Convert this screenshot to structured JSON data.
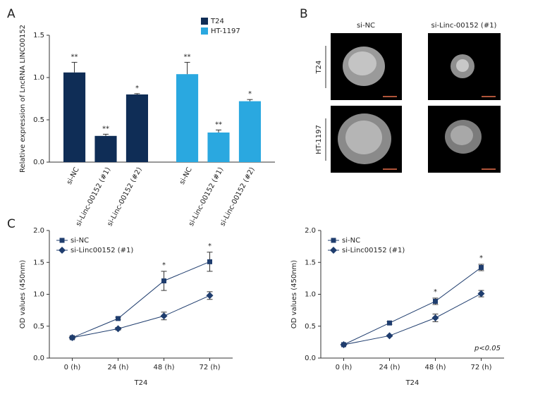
{
  "panel_labels": [
    "A",
    "B",
    "C"
  ],
  "panel_b": {
    "columns": [
      "si-NC",
      "si-Linc-00152 (#1)"
    ],
    "rows": [
      "T24",
      "HT-1197"
    ]
  },
  "chart_data": [
    {
      "type": "bar",
      "y_label": "Relative expression of LncRNA LINC00152",
      "categories": [
        "si-NC",
        "si-Linc-00152 (#1)",
        "si-Linc-00152 (#2)"
      ],
      "series": [
        {
          "name": "T24",
          "color": "#0f2d56",
          "values": [
            1.06,
            0.31,
            0.8
          ],
          "errors": [
            0.12,
            0.02,
            0.01
          ],
          "significance": [
            "**",
            "**",
            "*"
          ]
        },
        {
          "name": "HT-1197",
          "color": "#2aa8e0",
          "values": [
            1.04,
            0.35,
            0.72
          ],
          "errors": [
            0.14,
            0.03,
            0.02
          ],
          "significance": [
            "**",
            "**",
            "*"
          ]
        }
      ],
      "ylim": [
        0,
        1.5
      ],
      "yticks": [
        {
          "value": 0,
          "label": "0.0"
        },
        0.5,
        {
          "value": 1,
          "label": "1.0"
        },
        1.5
      ]
    },
    {
      "type": "line",
      "y_label": "OD values (450nm)",
      "x_label": "T24",
      "categories": [
        "0 (h)",
        "24 (h)",
        "48 (h)",
        "72 (h)"
      ],
      "series": [
        {
          "name": "si-NC",
          "color": "#1f3d6e",
          "marker": "square",
          "values": [
            0.32,
            0.62,
            1.21,
            1.51
          ],
          "errors": [
            0.02,
            0.02,
            0.15,
            0.15
          ],
          "significance": [
            null,
            null,
            "*",
            "*"
          ]
        },
        {
          "name": "si-Linc00152 (#1)",
          "color": "#1f3d6e",
          "marker": "diamond",
          "values": [
            0.32,
            0.46,
            0.66,
            0.98
          ],
          "errors": [
            0.02,
            0.02,
            0.06,
            0.06
          ]
        }
      ],
      "ylim": [
        0,
        2
      ],
      "yticks": [
        {
          "value": 0,
          "label": "0.0"
        },
        0.5,
        {
          "value": 1,
          "label": "1.0"
        },
        1.5,
        {
          "value": 2,
          "label": "2.0"
        }
      ]
    },
    {
      "type": "line",
      "y_label": "OD values (450nm)",
      "x_label": "T24",
      "note": "p<0.05",
      "categories": [
        "0 (h)",
        "24 (h)",
        "48 (h)",
        "72 (h)"
      ],
      "series": [
        {
          "name": "si-NC",
          "color": "#1f3d6e",
          "marker": "square",
          "values": [
            0.21,
            0.55,
            0.89,
            1.42
          ],
          "errors": [
            0.01,
            0.02,
            0.05,
            0.05
          ],
          "significance": [
            null,
            null,
            "*",
            "*"
          ]
        },
        {
          "name": "si-Linc00152 (#1)",
          "color": "#1f3d6e",
          "marker": "diamond",
          "values": [
            0.21,
            0.35,
            0.63,
            1.01
          ],
          "errors": [
            0.01,
            0.01,
            0.06,
            0.05
          ]
        }
      ],
      "ylim": [
        0,
        2
      ],
      "yticks": [
        {
          "value": 0,
          "label": "0.0"
        },
        0.5,
        {
          "value": 1,
          "label": "1.0"
        },
        1.5,
        {
          "value": 2,
          "label": "2.0"
        }
      ]
    }
  ]
}
